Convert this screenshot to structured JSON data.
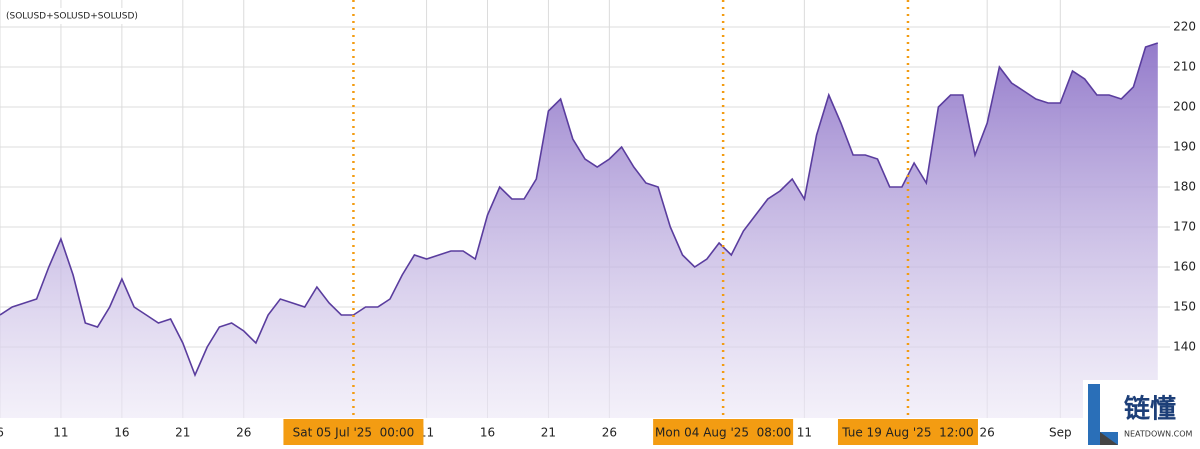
{
  "chart_data": {
    "type": "area",
    "legend_text": "(SOLUSD+SOLUSD+SOLUSD)",
    "x": [
      "2025-06-06",
      "2025-06-07",
      "2025-06-08",
      "2025-06-09",
      "2025-06-10",
      "2025-06-11",
      "2025-06-12",
      "2025-06-13",
      "2025-06-14",
      "2025-06-15",
      "2025-06-16",
      "2025-06-17",
      "2025-06-18",
      "2025-06-19",
      "2025-06-20",
      "2025-06-21",
      "2025-06-22",
      "2025-06-23",
      "2025-06-24",
      "2025-06-25",
      "2025-06-26",
      "2025-06-27",
      "2025-06-28",
      "2025-06-29",
      "2025-06-30",
      "2025-07-01",
      "2025-07-02",
      "2025-07-03",
      "2025-07-04",
      "2025-07-05",
      "2025-07-06",
      "2025-07-07",
      "2025-07-08",
      "2025-07-09",
      "2025-07-10",
      "2025-07-11",
      "2025-07-12",
      "2025-07-13",
      "2025-07-14",
      "2025-07-15",
      "2025-07-16",
      "2025-07-17",
      "2025-07-18",
      "2025-07-19",
      "2025-07-20",
      "2025-07-21",
      "2025-07-22",
      "2025-07-23",
      "2025-07-24",
      "2025-07-25",
      "2025-07-26",
      "2025-07-27",
      "2025-07-28",
      "2025-07-29",
      "2025-07-30",
      "2025-07-31",
      "2025-08-01",
      "2025-08-02",
      "2025-08-03",
      "2025-08-04",
      "2025-08-05",
      "2025-08-06",
      "2025-08-07",
      "2025-08-08",
      "2025-08-09",
      "2025-08-10",
      "2025-08-11",
      "2025-08-12",
      "2025-08-13",
      "2025-08-14",
      "2025-08-15",
      "2025-08-16",
      "2025-08-17",
      "2025-08-18",
      "2025-08-19",
      "2025-08-20",
      "2025-08-21",
      "2025-08-22",
      "2025-08-23",
      "2025-08-24",
      "2025-08-25",
      "2025-08-26",
      "2025-08-27",
      "2025-08-28",
      "2025-08-29",
      "2025-08-30",
      "2025-08-31",
      "2025-09-01",
      "2025-09-02",
      "2025-09-03",
      "2025-09-04",
      "2025-09-05",
      "2025-09-06",
      "2025-09-07",
      "2025-09-08",
      "2025-09-09"
    ],
    "series": [
      {
        "name": "SOLUSD",
        "color": "#5a3d9e",
        "values": [
          148,
          150,
          151,
          152,
          160,
          167,
          158,
          146,
          145,
          150,
          157,
          150,
          148,
          146,
          147,
          141,
          133,
          140,
          145,
          146,
          144,
          141,
          148,
          152,
          151,
          150,
          155,
          151,
          148,
          148,
          150,
          150,
          152,
          158,
          163,
          162,
          163,
          164,
          164,
          162,
          173,
          180,
          177,
          177,
          182,
          199,
          202,
          192,
          187,
          185,
          187,
          190,
          185,
          181,
          180,
          170,
          163,
          160,
          162,
          166,
          163,
          169,
          173,
          177,
          179,
          182,
          177,
          193,
          203,
          196,
          188,
          188,
          187,
          180,
          180,
          186,
          181,
          200,
          203,
          203,
          188,
          196,
          210,
          206,
          204,
          202,
          201,
          201,
          209,
          207,
          203,
          203,
          202,
          205,
          215,
          216
        ]
      }
    ],
    "xlim": [
      "2025-06-06",
      "2025-09-10"
    ],
    "xticks": [
      {
        "value": "2025-06-06",
        "label": "6"
      },
      {
        "value": "2025-06-11",
        "label": "11"
      },
      {
        "value": "2025-06-16",
        "label": "16"
      },
      {
        "value": "2025-06-21",
        "label": "21"
      },
      {
        "value": "2025-06-26",
        "label": "26"
      },
      {
        "value": "2025-07-11",
        "label": "11"
      },
      {
        "value": "2025-07-16",
        "label": "16"
      },
      {
        "value": "2025-07-21",
        "label": "21"
      },
      {
        "value": "2025-07-26",
        "label": "26"
      },
      {
        "value": "2025-08-11",
        "label": "11"
      },
      {
        "value": "2025-08-26",
        "label": "26"
      },
      {
        "value": "2025-09-01",
        "label": "Sep"
      }
    ],
    "ylim": [
      122.25,
      226.75
    ],
    "yticks": [
      140,
      150,
      160,
      170,
      180,
      190,
      200,
      210,
      220
    ],
    "grid": true,
    "markers": [
      {
        "x": "2025-07-05T00:00",
        "label": "Sat 05 Jul '25  00:00"
      },
      {
        "x": "2025-08-04T08:00",
        "label": "Mon 04 Aug '25  08:00"
      },
      {
        "x": "2025-08-19T12:00",
        "label": "Tue 19 Aug '25  12:00"
      }
    ],
    "marker_color": "#f39c12",
    "watermark": {
      "text": "链懂",
      "sub": "NEATDOWN.COM"
    }
  }
}
